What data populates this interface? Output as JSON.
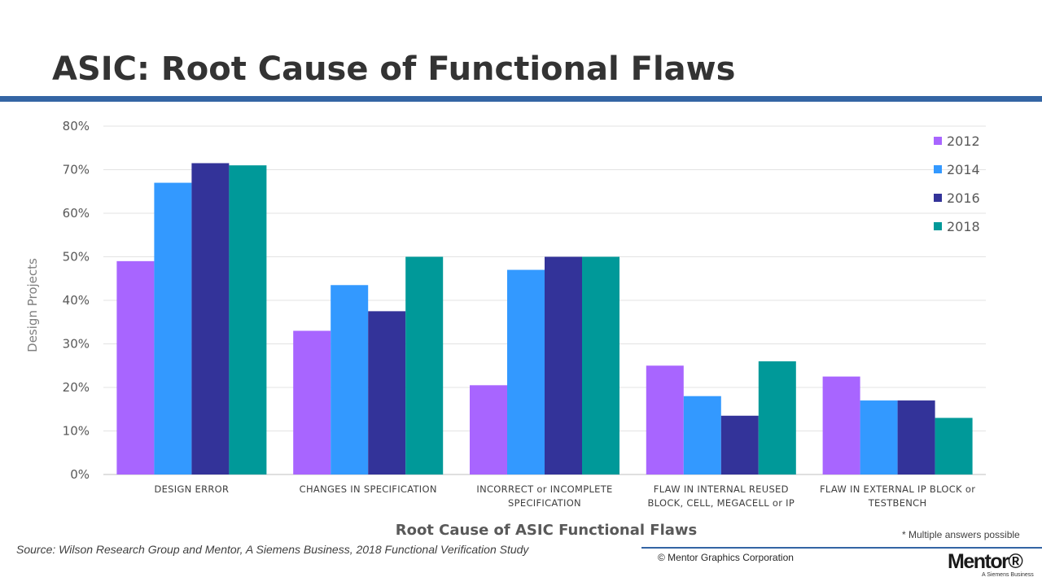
{
  "slide": {
    "title": "ASIC: Root Cause of Functional Flaws",
    "source": "Source:  Wilson Research Group and Mentor, A Siemens Business, 2018 Functional Verification Study",
    "footnote": "* Multiple answers possible",
    "copyright": "© Mentor Graphics Corporation",
    "logo_text": "Mentor®",
    "logo_tagline": "A Siemens Business",
    "accent_color": "#3465a4"
  },
  "chart_data": {
    "type": "bar",
    "title": "",
    "xlabel": "Root Cause of ASIC Functional Flaws",
    "ylabel": "Design Projects",
    "ylim": [
      0,
      80
    ],
    "y_ticks": [
      "0%",
      "10%",
      "20%",
      "30%",
      "40%",
      "50%",
      "60%",
      "70%",
      "80%"
    ],
    "grid": true,
    "legend_position": "top-right",
    "categories": [
      [
        "DESIGN ERROR"
      ],
      [
        "CHANGES IN SPECIFICATION"
      ],
      [
        "INCORRECT or INCOMPLETE",
        "SPECIFICATION"
      ],
      [
        "FLAW IN INTERNAL REUSED",
        "BLOCK, CELL, MEGACELL or IP"
      ],
      [
        "FLAW IN EXTERNAL IP BLOCK or",
        "TESTBENCH"
      ]
    ],
    "series": [
      {
        "name": "2012",
        "color": "#a865ff",
        "values": [
          49,
          33,
          20.5,
          25,
          22.5
        ]
      },
      {
        "name": "2014",
        "color": "#3399ff",
        "values": [
          67,
          43.5,
          47,
          18,
          17
        ]
      },
      {
        "name": "2016",
        "color": "#333399",
        "values": [
          71.5,
          37.5,
          50,
          13.5,
          17
        ]
      },
      {
        "name": "2018",
        "color": "#009999",
        "values": [
          71,
          50,
          50,
          26,
          13
        ]
      }
    ]
  }
}
